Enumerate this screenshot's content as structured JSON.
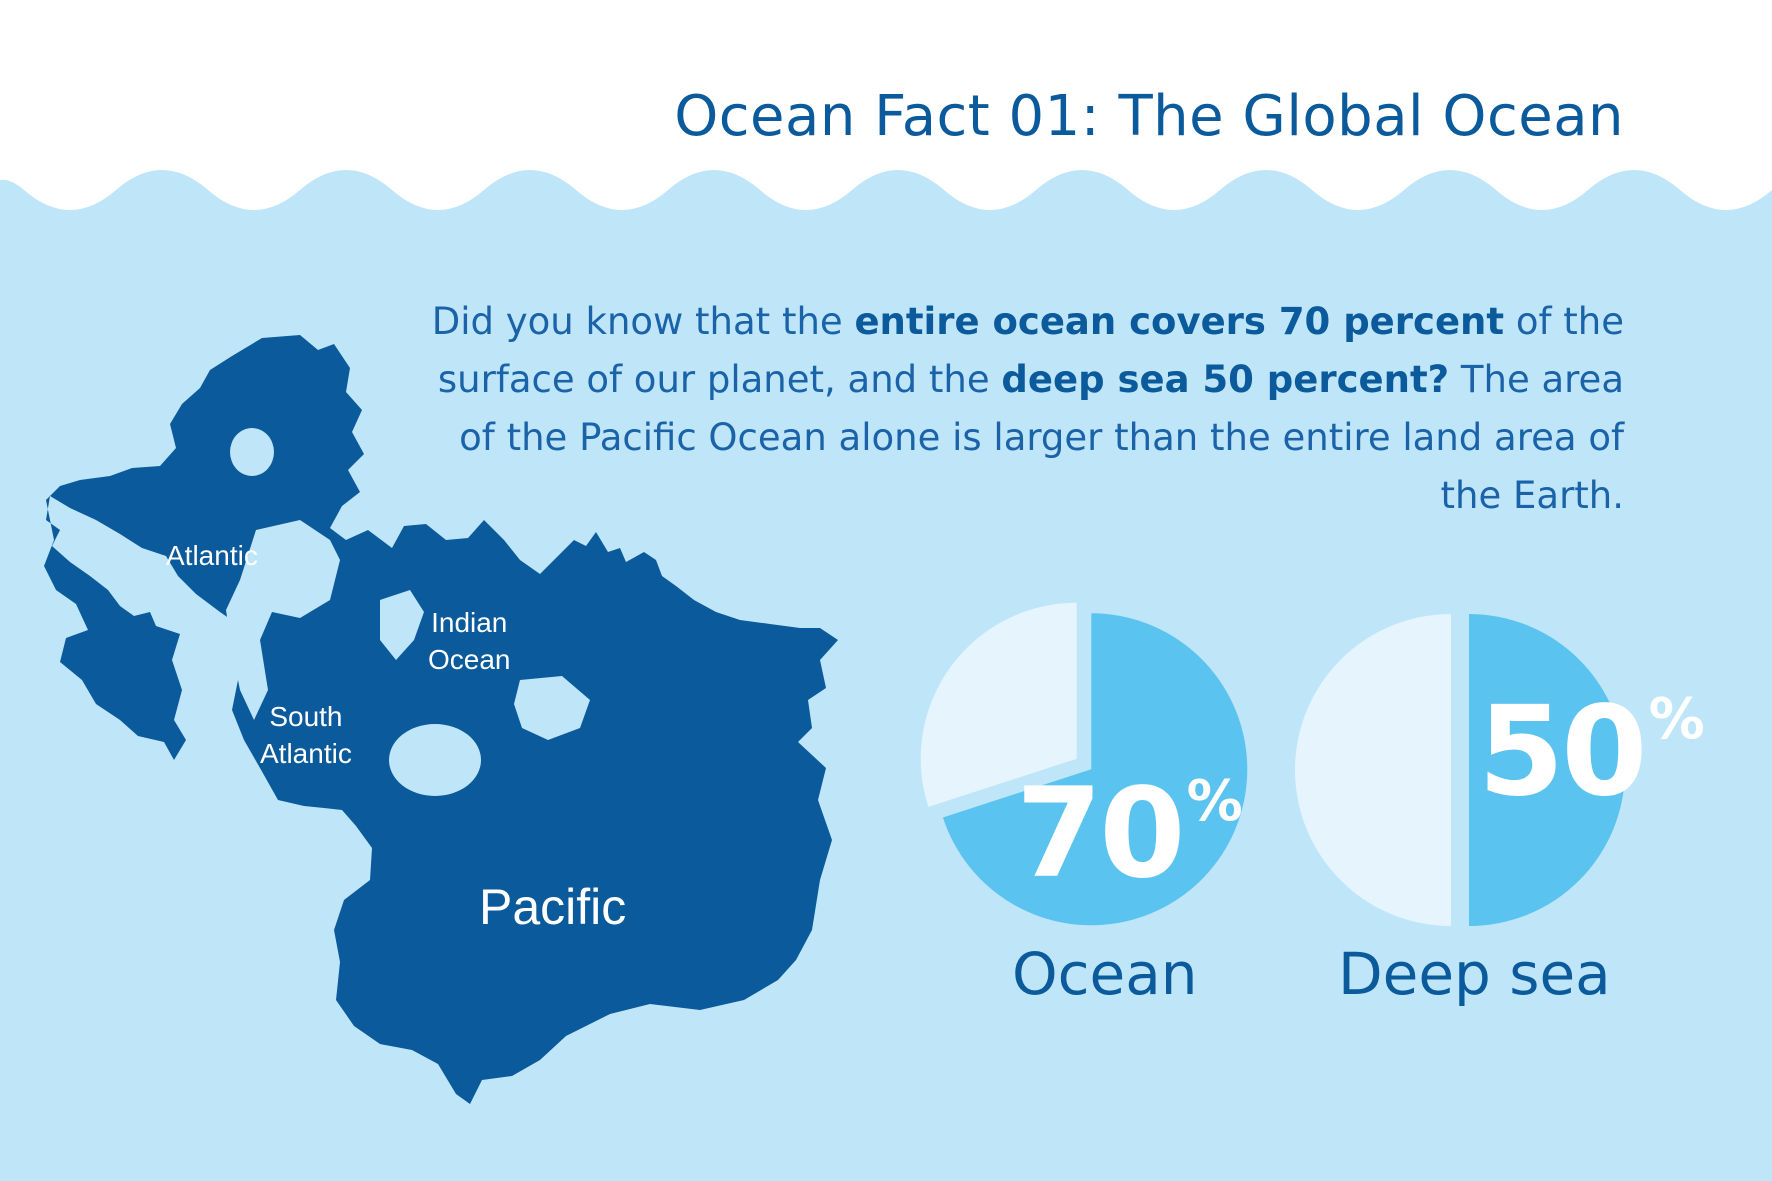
{
  "title": "Ocean Fact 01: The Global Ocean",
  "intro": {
    "t1": "Did you know that the ",
    "b1": "entire ocean covers 70 percent",
    "t2": " of the surface of our planet, and the ",
    "b2": "deep sea 50 percent?",
    "t3": " The area of the Pacific Ocean alone is larger than the entire land area of the Earth."
  },
  "map": {
    "labels": {
      "atlantic": "Atlantic",
      "indian": [
        "Indian",
        "Ocean"
      ],
      "south_atlantic": [
        "South",
        "Atlantic"
      ],
      "pacific": "Pacific"
    }
  },
  "colors": {
    "background": "#bfe5f9",
    "ocean_dark": "#0a5a9c",
    "pie_fill": "#5bc3ef",
    "pie_rest": "#e6f5fd",
    "text": "#0a5a9c"
  },
  "chart_data": [
    {
      "type": "pie",
      "label": "Ocean",
      "value": 70,
      "value_text": "70",
      "unit": "%",
      "slices": [
        {
          "value": 70
        },
        {
          "value": 30
        }
      ]
    },
    {
      "type": "pie",
      "label": "Deep sea",
      "value": 50,
      "value_text": "50",
      "unit": "%",
      "slices": [
        {
          "value": 50
        },
        {
          "value": 50
        }
      ]
    }
  ]
}
